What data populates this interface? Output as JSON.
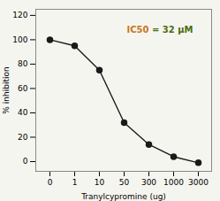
{
  "chart_data": {
    "type": "line",
    "xlabel": "Tranylcypromine (ug)",
    "ylabel": "% inhibition",
    "categories": [
      "0",
      "1",
      "10",
      "50",
      "300",
      "1000",
      "3000"
    ],
    "values": [
      100,
      95,
      75,
      32,
      14,
      4,
      -1
    ],
    "color": "#1a1a1a",
    "marker": "circle",
    "ylim": [
      -8,
      125
    ],
    "yticks": [
      0,
      20,
      40,
      60,
      80,
      100,
      120
    ],
    "grid": false,
    "annotations": [
      {
        "text": "IC50",
        "color": "#c87820"
      },
      {
        "text": " = 32 μM",
        "color": "#4a6e10"
      }
    ]
  }
}
